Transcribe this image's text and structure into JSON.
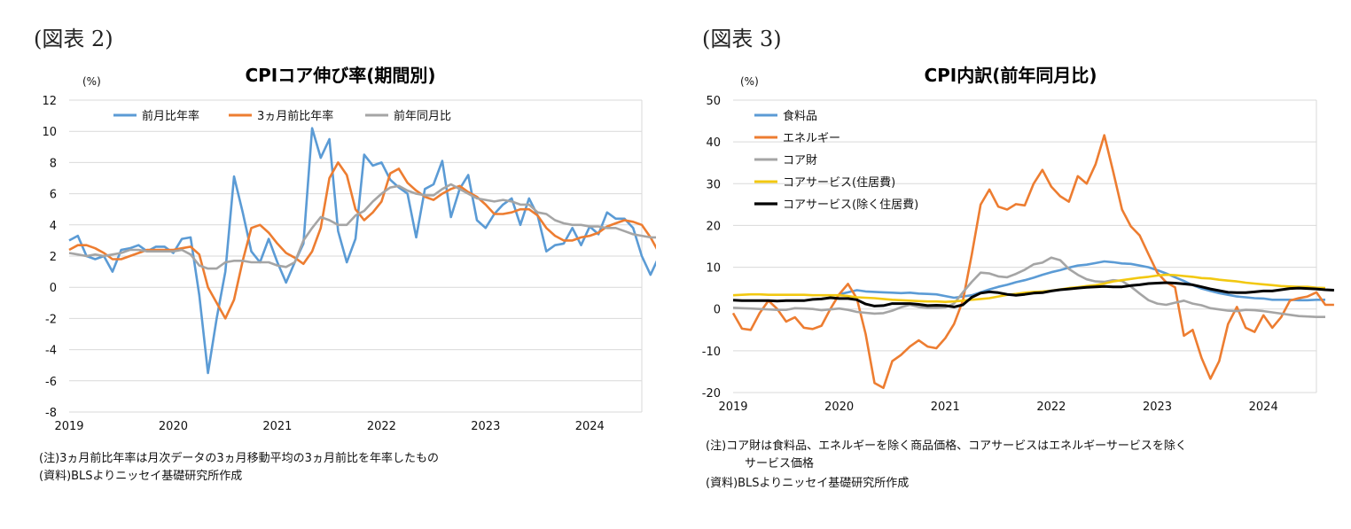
{
  "figures": {
    "left_label": "(図表 2)",
    "right_label": "(図表 3)"
  },
  "notes": {
    "left_note": "(注)3ヵ月前比年率は月次データの3ヵ月移動平均の3ヵ月前比を年率したもの",
    "left_source": "(資料)BLSよりニッセイ基礎研究所作成",
    "right_note_line1": "(注)コア財は食料品、エネルギーを除く商品価格、コアサービスはエネルギーサービスを除く",
    "right_note_line2": "サービス価格",
    "right_source": "(資料)BLSよりニッセイ基礎研究所作成"
  },
  "chart_data": [
    {
      "type": "line",
      "title": "CPIコア伸び率(期間別)",
      "ylabel": "(%)",
      "xlabel": "",
      "ylim": [
        -8,
        12
      ],
      "yticks": [
        -8,
        -6,
        -4,
        -2,
        0,
        2,
        4,
        6,
        8,
        10,
        12
      ],
      "xlim": [
        0,
        66
      ],
      "xtick_labels": [
        "2019",
        "2020",
        "2021",
        "2022",
        "2023",
        "2024"
      ],
      "xtick_positions": [
        0,
        12,
        24,
        36,
        48,
        60
      ],
      "legend_position": "top",
      "series": [
        {
          "name": "前月比年率",
          "color": "#5B9BD5",
          "values": [
            3.0,
            3.3,
            2.0,
            1.8,
            2.0,
            1.0,
            2.4,
            2.5,
            2.7,
            2.3,
            2.6,
            2.6,
            2.2,
            3.1,
            3.2,
            -0.5,
            -5.5,
            -2.0,
            1.0,
            7.1,
            4.8,
            2.3,
            1.6,
            3.1,
            1.6,
            0.3,
            1.6,
            2.8,
            10.2,
            8.3,
            9.5,
            3.6,
            1.6,
            3.1,
            8.5,
            7.8,
            8.0,
            6.9,
            6.4,
            6.0,
            3.2,
            6.3,
            6.6,
            8.1,
            4.5,
            6.3,
            7.2,
            4.3,
            3.8,
            4.7,
            5.3,
            5.7,
            4.0,
            5.7,
            4.6,
            2.3,
            2.7,
            2.8,
            3.8,
            2.7,
            3.9,
            3.4,
            4.8,
            4.4,
            4.4,
            3.8,
            2.0,
            0.8,
            2.0
          ],
          "_note": "approximate monthly values; first value at Jan-2019 sits slightly left of axis start"
        },
        {
          "name": "3ヵ月前比年率",
          "color": "#ED7D31",
          "values": [
            2.4,
            2.7,
            2.7,
            2.5,
            2.2,
            1.8,
            1.8,
            2.0,
            2.2,
            2.4,
            2.4,
            2.4,
            2.4,
            2.5,
            2.6,
            2.1,
            0.0,
            -1.0,
            -2.0,
            -0.8,
            1.7,
            3.8,
            4.0,
            3.5,
            2.8,
            2.2,
            1.9,
            1.5,
            2.3,
            3.8,
            7.0,
            8.0,
            7.2,
            5.0,
            4.3,
            4.8,
            5.5,
            7.3,
            7.6,
            6.7,
            6.2,
            5.8,
            5.6,
            6.0,
            6.3,
            6.5,
            6.1,
            5.8,
            5.3,
            4.7,
            4.7,
            4.8,
            5.0,
            5.0,
            4.6,
            3.8,
            3.3,
            3.0,
            3.0,
            3.2,
            3.3,
            3.5,
            3.9,
            4.1,
            4.3,
            4.2,
            4.0,
            3.2,
            2.2
          ]
        },
        {
          "name": "前年同月比",
          "color": "#A5A5A5",
          "values": [
            2.2,
            2.1,
            2.0,
            2.1,
            2.0,
            2.1,
            2.2,
            2.4,
            2.4,
            2.3,
            2.3,
            2.3,
            2.3,
            2.4,
            2.1,
            1.4,
            1.2,
            1.2,
            1.6,
            1.7,
            1.7,
            1.6,
            1.6,
            1.6,
            1.4,
            1.3,
            1.6,
            3.0,
            3.8,
            4.5,
            4.3,
            4.0,
            4.0,
            4.6,
            4.9,
            5.5,
            6.0,
            6.4,
            6.5,
            6.2,
            6.0,
            5.9,
            5.9,
            6.3,
            6.6,
            6.3,
            6.0,
            5.7,
            5.6,
            5.5,
            5.6,
            5.5,
            5.3,
            5.3,
            4.8,
            4.7,
            4.3,
            4.1,
            4.0,
            4.0,
            3.9,
            3.9,
            3.8,
            3.8,
            3.6,
            3.4,
            3.3,
            3.2,
            3.2
          ]
        }
      ]
    },
    {
      "type": "line",
      "title": "CPI内訳(前年同月比)",
      "ylabel": "(%)",
      "xlabel": "",
      "ylim": [
        -20,
        50
      ],
      "yticks": [
        -20,
        -10,
        0,
        10,
        20,
        30,
        40,
        50
      ],
      "xlim": [
        0,
        66
      ],
      "xtick_labels": [
        "2019",
        "2020",
        "2021",
        "2022",
        "2023",
        "2024"
      ],
      "xtick_positions": [
        0,
        12,
        24,
        36,
        48,
        60
      ],
      "legend_position": "top-left",
      "series": [
        {
          "name": "食料品",
          "color": "#5B9BD5",
          "values": [
            null,
            null,
            null,
            null,
            null,
            null,
            null,
            null,
            null,
            null,
            null,
            null,
            3.5,
            4.0,
            4.5,
            4.2,
            4.1,
            4.0,
            3.9,
            3.8,
            3.9,
            3.7,
            3.6,
            3.5,
            3.1,
            2.7,
            3.0,
            3.3,
            4.0,
            4.7,
            5.3,
            5.8,
            6.4,
            6.9,
            7.5,
            8.2,
            8.8,
            9.3,
            9.9,
            10.4,
            10.6,
            11.0,
            11.4,
            11.2,
            10.9,
            10.8,
            10.4,
            10.0,
            9.3,
            8.5,
            7.6,
            6.7,
            5.7,
            4.9,
            4.3,
            3.8,
            3.4,
            3.0,
            2.8,
            2.6,
            2.5,
            2.2,
            2.2,
            2.2,
            2.1,
            2.1,
            2.2,
            2.2
          ]
        },
        {
          "name": "エネルギー",
          "color": "#ED7D31",
          "values": [
            -1.0,
            -4.7,
            -5.0,
            -1.0,
            2.0,
            0.0,
            -3.0,
            -2.0,
            -4.5,
            -4.8,
            -4.0,
            0.0,
            3.5,
            6.0,
            2.5,
            -6.0,
            -17.7,
            -18.9,
            -12.5,
            -11.0,
            -9.0,
            -7.5,
            -9.0,
            -9.4,
            -7.0,
            -3.6,
            2.0,
            13.0,
            25.0,
            28.6,
            24.5,
            23.8,
            25.1,
            24.8,
            30.0,
            33.3,
            29.3,
            27.0,
            25.7,
            31.8,
            30.0,
            34.6,
            41.6,
            32.9,
            23.8,
            19.8,
            17.6,
            13.1,
            8.7,
            6.4,
            5.2,
            -6.4,
            -5.0,
            -11.7,
            -16.7,
            -12.5,
            -3.6,
            0.5,
            -4.5,
            -5.5,
            -1.5,
            -4.5,
            -2.0,
            2.0,
            2.6,
            3.0,
            4.0,
            1.0,
            1.0
          ]
        },
        {
          "name": "コア財",
          "color": "#A5A5A5",
          "values": [
            0.3,
            0.2,
            0.1,
            0.0,
            -0.1,
            -0.2,
            -0.2,
            0.2,
            0.1,
            0.0,
            -0.3,
            -0.1,
            0.1,
            -0.2,
            -0.7,
            -0.9,
            -1.1,
            -1.0,
            -0.4,
            0.4,
            1.0,
            0.5,
            0.3,
            0.3,
            0.4,
            1.3,
            4.0,
            6.5,
            8.7,
            8.5,
            7.8,
            7.6,
            8.4,
            9.4,
            10.7,
            11.1,
            12.3,
            11.7,
            9.6,
            8.2,
            7.1,
            6.6,
            6.5,
            6.9,
            6.7,
            5.4,
            3.7,
            2.1,
            1.3,
            1.0,
            1.5,
            2.0,
            1.3,
            0.9,
            0.2,
            -0.1,
            -0.4,
            -0.5,
            -0.2,
            -0.3,
            -0.5,
            -0.8,
            -1.1,
            -1.4,
            -1.7,
            -1.8,
            -1.9,
            -1.9
          ]
        },
        {
          "name": "コアサービス(住居費)",
          "color": "#F2C811",
          "values": [
            3.3,
            3.4,
            3.5,
            3.5,
            3.4,
            3.4,
            3.4,
            3.4,
            3.4,
            3.3,
            3.3,
            3.3,
            3.3,
            3.1,
            2.8,
            2.7,
            2.6,
            2.4,
            2.2,
            2.1,
            2.0,
            1.9,
            1.8,
            1.8,
            1.7,
            1.8,
            2.0,
            2.2,
            2.4,
            2.6,
            3.0,
            3.4,
            3.6,
            3.9,
            4.1,
            4.2,
            4.4,
            4.7,
            5.0,
            5.2,
            5.5,
            5.7,
            6.1,
            6.6,
            6.9,
            7.2,
            7.5,
            7.7,
            8.0,
            8.2,
            8.1,
            7.9,
            7.7,
            7.4,
            7.3,
            7.0,
            6.8,
            6.6,
            6.3,
            6.1,
            5.9,
            5.7,
            5.5,
            5.4,
            5.3,
            5.3,
            5.1,
            5.0
          ]
        },
        {
          "name": "コアサービス(除く住居費)",
          "color": "#000000",
          "values": [
            2.1,
            2.0,
            2.0,
            2.0,
            2.0,
            1.9,
            2.0,
            2.0,
            2.0,
            2.3,
            2.4,
            2.7,
            2.5,
            2.5,
            2.2,
            1.2,
            0.7,
            0.8,
            1.3,
            1.3,
            1.3,
            1.1,
            0.8,
            0.9,
            0.8,
            0.5,
            1.0,
            2.8,
            3.8,
            4.1,
            3.9,
            3.5,
            3.3,
            3.5,
            3.8,
            3.9,
            4.3,
            4.6,
            4.8,
            5.0,
            5.2,
            5.3,
            5.4,
            5.3,
            5.3,
            5.6,
            5.8,
            6.1,
            6.2,
            6.3,
            6.2,
            6.0,
            5.8,
            5.3,
            4.8,
            4.4,
            4.0,
            3.9,
            3.9,
            4.1,
            4.3,
            4.3,
            4.6,
            4.9,
            5.0,
            4.9,
            4.8,
            4.6,
            4.5
          ]
        }
      ]
    }
  ]
}
